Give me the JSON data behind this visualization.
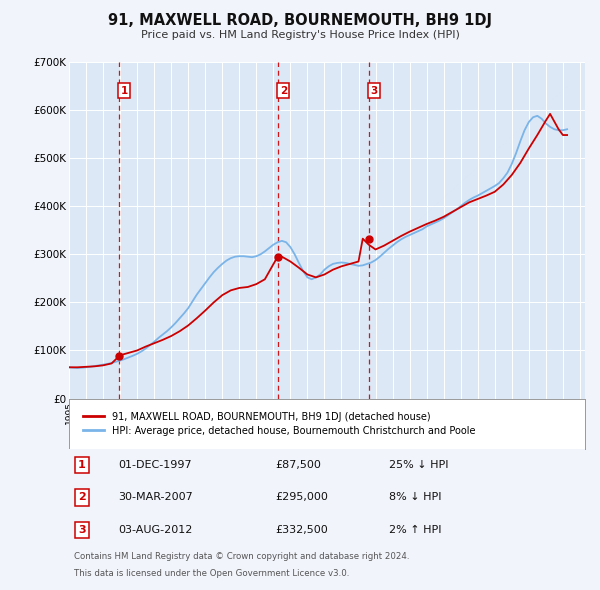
{
  "title": "91, MAXWELL ROAD, BOURNEMOUTH, BH9 1DJ",
  "subtitle": "Price paid vs. HM Land Registry's House Price Index (HPI)",
  "background_color": "#f2f4fb",
  "plot_bg_color": "#dce8f5",
  "grid_color": "#ffffff",
  "ylim": [
    0,
    700000
  ],
  "yticks": [
    0,
    100000,
    200000,
    300000,
    400000,
    500000,
    600000,
    700000
  ],
  "ytick_labels": [
    "£0",
    "£100K",
    "£200K",
    "£300K",
    "£400K",
    "£500K",
    "£600K",
    "£700K"
  ],
  "sale_years": [
    1997.92,
    2007.25,
    2012.6
  ],
  "sale_prices": [
    87500,
    295000,
    332500
  ],
  "sale_labels": [
    "1",
    "2",
    "3"
  ],
  "vline_color": "#cc0000",
  "dot_color": "#cc0000",
  "hpi_line_color": "#7ab4e8",
  "price_line_color": "#cc0000",
  "legend_label_price": "91, MAXWELL ROAD, BOURNEMOUTH, BH9 1DJ (detached house)",
  "legend_label_hpi": "HPI: Average price, detached house, Bournemouth Christchurch and Poole",
  "table_rows": [
    {
      "num": "1",
      "date": "01-DEC-1997",
      "price": "£87,500",
      "hpi": "25% ↓ HPI"
    },
    {
      "num": "2",
      "date": "30-MAR-2007",
      "price": "£295,000",
      "hpi": "8% ↓ HPI"
    },
    {
      "num": "3",
      "date": "03-AUG-2012",
      "price": "£332,500",
      "hpi": "2% ↑ HPI"
    }
  ],
  "footnote1": "Contains HM Land Registry data © Crown copyright and database right 2024.",
  "footnote2": "This data is licensed under the Open Government Licence v3.0.",
  "hpi_years": [
    1995,
    1995.25,
    1995.5,
    1995.75,
    1996,
    1996.25,
    1996.5,
    1996.75,
    1997,
    1997.25,
    1997.5,
    1997.75,
    1998,
    1998.25,
    1998.5,
    1998.75,
    1999,
    1999.25,
    1999.5,
    1999.75,
    2000,
    2000.25,
    2000.5,
    2000.75,
    2001,
    2001.25,
    2001.5,
    2001.75,
    2002,
    2002.25,
    2002.5,
    2002.75,
    2003,
    2003.25,
    2003.5,
    2003.75,
    2004,
    2004.25,
    2004.5,
    2004.75,
    2005,
    2005.25,
    2005.5,
    2005.75,
    2006,
    2006.25,
    2006.5,
    2006.75,
    2007,
    2007.25,
    2007.5,
    2007.75,
    2008,
    2008.25,
    2008.5,
    2008.75,
    2009,
    2009.25,
    2009.5,
    2009.75,
    2010,
    2010.25,
    2010.5,
    2010.75,
    2011,
    2011.25,
    2011.5,
    2011.75,
    2012,
    2012.25,
    2012.5,
    2012.75,
    2013,
    2013.25,
    2013.5,
    2013.75,
    2014,
    2014.25,
    2014.5,
    2014.75,
    2015,
    2015.25,
    2015.5,
    2015.75,
    2016,
    2016.25,
    2016.5,
    2016.75,
    2017,
    2017.25,
    2017.5,
    2017.75,
    2018,
    2018.25,
    2018.5,
    2018.75,
    2019,
    2019.25,
    2019.5,
    2019.75,
    2020,
    2020.25,
    2020.5,
    2020.75,
    2021,
    2021.25,
    2021.5,
    2021.75,
    2022,
    2022.25,
    2022.5,
    2022.75,
    2023,
    2023.25,
    2023.5,
    2023.75,
    2024,
    2024.25
  ],
  "hpi_values": [
    65000,
    64000,
    63500,
    64000,
    65000,
    66000,
    67500,
    69000,
    70500,
    72000,
    74000,
    76500,
    79000,
    82000,
    85500,
    89000,
    93000,
    98000,
    104000,
    111000,
    118000,
    126000,
    133000,
    140000,
    148000,
    157000,
    167000,
    177000,
    188000,
    202000,
    216000,
    228000,
    240000,
    252000,
    263000,
    272000,
    280000,
    287000,
    292000,
    295000,
    296000,
    296000,
    295000,
    294000,
    296000,
    300000,
    306000,
    313000,
    320000,
    325000,
    328000,
    325000,
    315000,
    300000,
    282000,
    265000,
    252000,
    248000,
    252000,
    258000,
    268000,
    275000,
    280000,
    282000,
    283000,
    282000,
    280000,
    278000,
    276000,
    277000,
    280000,
    283000,
    288000,
    295000,
    303000,
    311000,
    318000,
    325000,
    331000,
    336000,
    340000,
    344000,
    348000,
    352000,
    358000,
    362000,
    366000,
    370000,
    375000,
    381000,
    387000,
    393000,
    400000,
    407000,
    413000,
    418000,
    422000,
    427000,
    432000,
    437000,
    442000,
    448000,
    458000,
    470000,
    488000,
    510000,
    535000,
    558000,
    575000,
    585000,
    588000,
    582000,
    572000,
    565000,
    560000,
    558000,
    558000,
    560000
  ],
  "price_years": [
    1995,
    1995.5,
    1996,
    1996.5,
    1997,
    1997.5,
    1997.92,
    1998,
    1998.5,
    1999,
    1999.5,
    2000,
    2000.5,
    2001,
    2001.5,
    2002,
    2002.5,
    2003,
    2003.5,
    2004,
    2004.5,
    2005,
    2005.5,
    2006,
    2006.5,
    2007.25,
    2007.5,
    2008,
    2008.5,
    2009,
    2009.5,
    2010,
    2010.5,
    2011,
    2011.5,
    2012,
    2012.25,
    2012.6,
    2013,
    2013.5,
    2014,
    2014.5,
    2015,
    2015.5,
    2016,
    2016.5,
    2017,
    2017.5,
    2018,
    2018.5,
    2019,
    2019.5,
    2020,
    2020.5,
    2021,
    2021.5,
    2022,
    2022.5,
    2023,
    2023.25,
    2023.75,
    2024,
    2024.25
  ],
  "price_values": [
    65000,
    65000,
    66000,
    67000,
    69000,
    73000,
    87500,
    90000,
    95000,
    100000,
    108000,
    115000,
    122000,
    130000,
    140000,
    152000,
    167000,
    183000,
    200000,
    215000,
    225000,
    230000,
    232000,
    238000,
    248000,
    295000,
    295000,
    285000,
    272000,
    258000,
    252000,
    258000,
    268000,
    275000,
    280000,
    285000,
    332500,
    320000,
    310000,
    318000,
    328000,
    338000,
    347000,
    355000,
    363000,
    370000,
    378000,
    388000,
    398000,
    408000,
    415000,
    422000,
    430000,
    445000,
    465000,
    490000,
    520000,
    548000,
    578000,
    592000,
    560000,
    548000,
    548000
  ]
}
